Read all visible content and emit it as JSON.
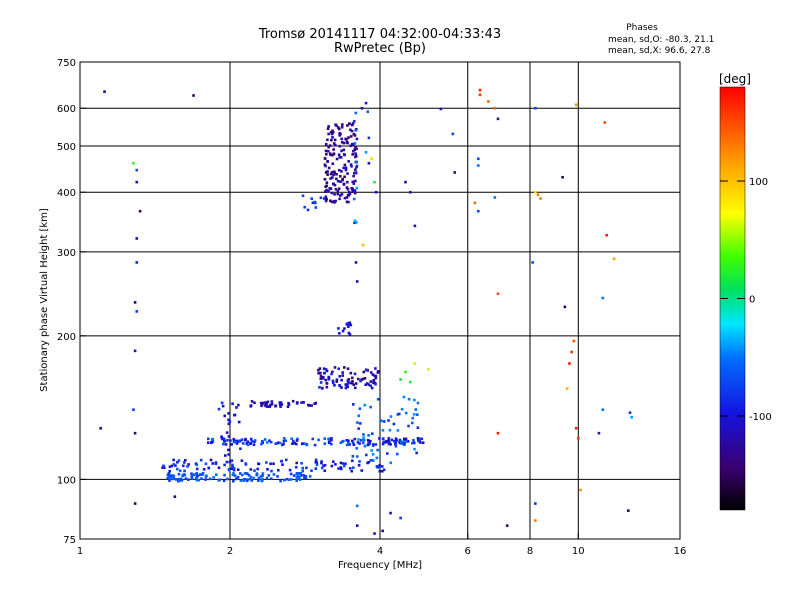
{
  "chart_data": {
    "type": "scatter",
    "title": "Tromsø 20141117 04:32:00-04:33:43",
    "subtitle": "RwPretec (Bp)",
    "xlabel": "Frequency [MHz]",
    "ylabel": "Stationary phase Virtual Height [km]",
    "x_scale": "log",
    "y_scale": "log",
    "xlim": [
      1,
      16
    ],
    "ylim": [
      75,
      750
    ],
    "x_ticks": [
      1,
      2,
      4,
      6,
      8,
      10,
      16
    ],
    "x_tick_labels": [
      "1",
      "2",
      "4",
      "6",
      "8",
      "10",
      "16"
    ],
    "y_ticks": [
      75,
      100,
      200,
      300,
      400,
      500,
      600,
      750
    ],
    "y_tick_labels": [
      "75",
      "100",
      "200",
      "300",
      "400",
      "500",
      "600",
      "750"
    ],
    "x_grid": [
      2,
      4,
      6,
      8,
      10
    ],
    "y_grid": [
      100,
      200,
      300,
      400,
      500,
      600
    ],
    "grid": true,
    "stats": {
      "heading": "Phases",
      "line_o": "mean, sd,O: -80.3, 21.1",
      "line_x": "mean, sd,X:  96.6, 27.8"
    },
    "colorbar": {
      "label": "[deg]",
      "range": [
        -180,
        180
      ],
      "ticks": [
        100,
        0,
        -100
      ],
      "tick_labels": [
        "100",
        "0",
        "-100"
      ]
    },
    "clusters": [
      {
        "xr": [
          3.1,
          3.6
        ],
        "yr": [
          380,
          560
        ],
        "n": 170,
        "c": [
          -150,
          -110
        ]
      },
      {
        "xr": [
          2.8,
          3.1
        ],
        "yr": [
          365,
          395
        ],
        "n": 10,
        "c": [
          -110,
          -60
        ]
      },
      {
        "xr": [
          1.48,
          2.9
        ],
        "yr": [
          99,
          103
        ],
        "n": 120,
        "c": [
          -80,
          -50
        ]
      },
      {
        "xr": [
          1.45,
          4.1
        ],
        "yr": [
          104,
          110
        ],
        "n": 110,
        "c": [
          -120,
          -60
        ]
      },
      {
        "xr": [
          1.8,
          4.9
        ],
        "yr": [
          118,
          122
        ],
        "n": 150,
        "c": [
          -120,
          -50
        ]
      },
      {
        "xr": [
          2.2,
          3.0
        ],
        "yr": [
          142,
          146
        ],
        "n": 40,
        "c": [
          -130,
          -100
        ]
      },
      {
        "xr": [
          3.0,
          4.0
        ],
        "yr": [
          155,
          172
        ],
        "n": 90,
        "c": [
          -150,
          -80
        ]
      },
      {
        "xr": [
          3.5,
          4.8
        ],
        "yr": [
          108,
          150
        ],
        "n": 60,
        "c": [
          -90,
          -40
        ]
      },
      {
        "xr": [
          1.9,
          2.1
        ],
        "yr": [
          112,
          145
        ],
        "n": 25,
        "c": [
          -120,
          -80
        ]
      },
      {
        "xr": [
          3.3,
          3.5
        ],
        "yr": [
          200,
          215
        ],
        "n": 12,
        "c": [
          -110,
          -90
        ]
      },
      {
        "xr": [
          3.55,
          3.6
        ],
        "yr": [
          345,
          620
        ],
        "n": 15,
        "c": [
          -120,
          -20
        ]
      }
    ],
    "points": [
      [
        1.12,
        650,
        -130
      ],
      [
        1.28,
        460,
        30
      ],
      [
        1.3,
        445,
        -70
      ],
      [
        1.3,
        420,
        -110
      ],
      [
        1.32,
        365,
        -150
      ],
      [
        1.3,
        320,
        -130
      ],
      [
        1.3,
        285,
        -90
      ],
      [
        1.29,
        235,
        -150
      ],
      [
        1.3,
        225,
        -80
      ],
      [
        1.29,
        186,
        -120
      ],
      [
        1.28,
        140,
        -80
      ],
      [
        1.29,
        125,
        -140
      ],
      [
        1.1,
        128,
        -140
      ],
      [
        1.29,
        89,
        -150
      ],
      [
        1.69,
        638,
        -150
      ],
      [
        1.55,
        92,
        -150
      ],
      [
        3.68,
        600,
        -120
      ],
      [
        3.75,
        615,
        -100
      ],
      [
        3.78,
        590,
        -60
      ],
      [
        3.8,
        520,
        -80
      ],
      [
        3.75,
        485,
        -40
      ],
      [
        3.85,
        470,
        90
      ],
      [
        3.8,
        460,
        -120
      ],
      [
        3.9,
        420,
        20
      ],
      [
        3.93,
        400,
        -100
      ],
      [
        3.58,
        285,
        -120
      ],
      [
        3.7,
        310,
        100
      ],
      [
        3.6,
        260,
        -120
      ],
      [
        4.05,
        78,
        -130
      ],
      [
        4.5,
        420,
        -130
      ],
      [
        4.6,
        400,
        -110
      ],
      [
        4.7,
        340,
        -120
      ],
      [
        5.3,
        598,
        -130
      ],
      [
        5.6,
        530,
        -70
      ],
      [
        5.65,
        440,
        -140
      ],
      [
        4.2,
        85,
        -120
      ],
      [
        4.4,
        83,
        -80
      ],
      [
        3.6,
        88,
        -50
      ],
      [
        6.35,
        640,
        160
      ],
      [
        6.35,
        655,
        170
      ],
      [
        6.6,
        620,
        140
      ],
      [
        6.3,
        470,
        -70
      ],
      [
        6.3,
        455,
        -50
      ],
      [
        6.2,
        380,
        140
      ],
      [
        6.3,
        365,
        -70
      ],
      [
        6.8,
        390,
        -50
      ],
      [
        6.9,
        570,
        -120
      ],
      [
        6.8,
        600,
        140
      ],
      [
        6.9,
        245,
        150
      ],
      [
        6.9,
        125,
        170
      ],
      [
        7.2,
        80,
        -150
      ],
      [
        8.2,
        600,
        -70
      ],
      [
        8.2,
        400,
        90
      ],
      [
        8.3,
        395,
        130
      ],
      [
        8.4,
        388,
        130
      ],
      [
        8.1,
        285,
        -70
      ],
      [
        9.3,
        430,
        -150
      ],
      [
        9.4,
        230,
        -150
      ],
      [
        9.9,
        610,
        120
      ],
      [
        9.8,
        195,
        150
      ],
      [
        9.7,
        185,
        160
      ],
      [
        9.6,
        175,
        170
      ],
      [
        9.5,
        155,
        110
      ],
      [
        9.9,
        128,
        170
      ],
      [
        10.0,
        122,
        160
      ],
      [
        10.1,
        95,
        120
      ],
      [
        8.2,
        82,
        130
      ],
      [
        8.2,
        89,
        -80
      ],
      [
        11.3,
        560,
        150
      ],
      [
        11.4,
        325,
        170
      ],
      [
        11.8,
        290,
        110
      ],
      [
        11.2,
        240,
        -50
      ],
      [
        11.2,
        140,
        -50
      ],
      [
        11.0,
        125,
        -100
      ],
      [
        12.7,
        138,
        -80
      ],
      [
        12.8,
        135,
        -40
      ],
      [
        12.6,
        86,
        -150
      ],
      [
        4.7,
        175,
        60
      ],
      [
        5.0,
        170,
        60
      ],
      [
        4.5,
        168,
        30
      ],
      [
        4.4,
        162,
        10
      ],
      [
        4.6,
        160,
        20
      ],
      [
        3.6,
        80,
        -120
      ],
      [
        3.9,
        77,
        -100
      ]
    ]
  }
}
